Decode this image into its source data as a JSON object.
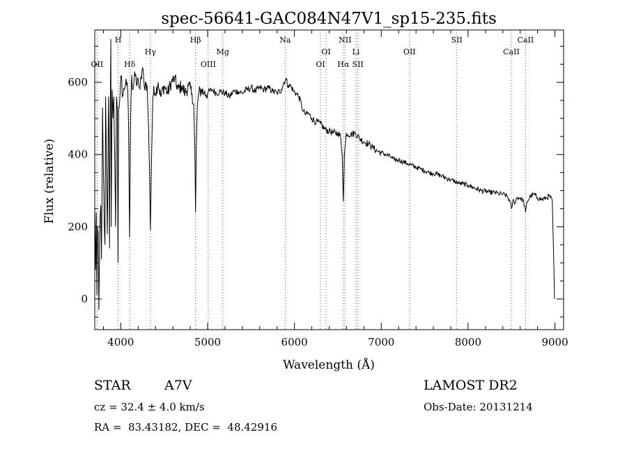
{
  "chart_data": {
    "type": "line",
    "title": "spec-56641-GAC084N47V1_sp15-235.fits",
    "xlabel": "Wavelength (Å)",
    "ylabel": "Flux (relative)",
    "xlim": [
      3700,
      9100
    ],
    "ylim": [
      -85,
      745
    ],
    "xticks": [
      4000,
      5000,
      6000,
      7000,
      8000,
      9000
    ],
    "yticks": [
      0,
      200,
      400,
      600
    ],
    "grid": false,
    "series": [
      {
        "points": [
          [
            3700,
            250
          ],
          [
            3710,
            80
          ],
          [
            3718,
            240
          ],
          [
            3725,
            10
          ],
          [
            3732,
            200
          ],
          [
            3740,
            180
          ],
          [
            3747,
            -30
          ],
          [
            3755,
            120
          ],
          [
            3762,
            230
          ],
          [
            3770,
            260
          ],
          [
            3778,
            110
          ],
          [
            3790,
            530
          ],
          [
            3800,
            340
          ],
          [
            3810,
            200
          ],
          [
            3818,
            150
          ],
          [
            3825,
            560
          ],
          [
            3835,
            360
          ],
          [
            3845,
            180
          ],
          [
            3855,
            470
          ],
          [
            3860,
            560
          ],
          [
            3870,
            140
          ],
          [
            3878,
            520
          ],
          [
            3885,
            720
          ],
          [
            3890,
            200
          ],
          [
            3900,
            580
          ],
          [
            3910,
            500
          ],
          [
            3920,
            560
          ],
          [
            3930,
            380
          ],
          [
            3940,
            200
          ],
          [
            3950,
            560
          ],
          [
            3960,
            520
          ],
          [
            3968,
            100
          ],
          [
            3975,
            530
          ],
          [
            3990,
            560
          ],
          [
            4005,
            620
          ],
          [
            4020,
            560
          ],
          [
            4040,
            580
          ],
          [
            4060,
            610
          ],
          [
            4080,
            570
          ],
          [
            4090,
            470
          ],
          [
            4101,
            170
          ],
          [
            4112,
            480
          ],
          [
            4125,
            620
          ],
          [
            4140,
            580
          ],
          [
            4160,
            630
          ],
          [
            4180,
            590
          ],
          [
            4200,
            610
          ],
          [
            4220,
            580
          ],
          [
            4250,
            640
          ],
          [
            4270,
            590
          ],
          [
            4290,
            600
          ],
          [
            4305,
            580
          ],
          [
            4320,
            470
          ],
          [
            4330,
            370
          ],
          [
            4341,
            190
          ],
          [
            4352,
            370
          ],
          [
            4365,
            520
          ],
          [
            4380,
            590
          ],
          [
            4400,
            570
          ],
          [
            4430,
            600
          ],
          [
            4460,
            560
          ],
          [
            4500,
            590
          ],
          [
            4540,
            570
          ],
          [
            4580,
            600
          ],
          [
            4620,
            610
          ],
          [
            4660,
            580
          ],
          [
            4700,
            590
          ],
          [
            4740,
            570
          ],
          [
            4780,
            590
          ],
          [
            4820,
            570
          ],
          [
            4840,
            540
          ],
          [
            4852,
            420
          ],
          [
            4861,
            240
          ],
          [
            4870,
            420
          ],
          [
            4882,
            540
          ],
          [
            4900,
            570
          ],
          [
            4930,
            580
          ],
          [
            4960,
            570
          ],
          [
            5000,
            570
          ],
          [
            5050,
            580
          ],
          [
            5100,
            570
          ],
          [
            5150,
            575
          ],
          [
            5200,
            570
          ],
          [
            5250,
            560
          ],
          [
            5300,
            575
          ],
          [
            5350,
            575
          ],
          [
            5400,
            570
          ],
          [
            5450,
            580
          ],
          [
            5500,
            585
          ],
          [
            5550,
            575
          ],
          [
            5600,
            585
          ],
          [
            5650,
            580
          ],
          [
            5700,
            585
          ],
          [
            5750,
            575
          ],
          [
            5800,
            570
          ],
          [
            5850,
            580
          ],
          [
            5880,
            600
          ],
          [
            5900,
            610
          ],
          [
            5930,
            590
          ],
          [
            5960,
            590
          ],
          [
            5990,
            575
          ],
          [
            6020,
            570
          ],
          [
            6050,
            560
          ],
          [
            6080,
            540
          ],
          [
            6100,
            520
          ],
          [
            6130,
            510
          ],
          [
            6160,
            515
          ],
          [
            6200,
            500
          ],
          [
            6250,
            490
          ],
          [
            6300,
            485
          ],
          [
            6350,
            470
          ],
          [
            6400,
            465
          ],
          [
            6450,
            460
          ],
          [
            6500,
            460
          ],
          [
            6530,
            450
          ],
          [
            6550,
            400
          ],
          [
            6563,
            270
          ],
          [
            6575,
            400
          ],
          [
            6600,
            460
          ],
          [
            6650,
            455
          ],
          [
            6700,
            460
          ],
          [
            6750,
            445
          ],
          [
            6800,
            435
          ],
          [
            6850,
            430
          ],
          [
            6900,
            420
          ],
          [
            6950,
            410
          ],
          [
            7000,
            405
          ],
          [
            7050,
            400
          ],
          [
            7100,
            395
          ],
          [
            7150,
            385
          ],
          [
            7200,
            385
          ],
          [
            7250,
            380
          ],
          [
            7300,
            375
          ],
          [
            7350,
            370
          ],
          [
            7400,
            365
          ],
          [
            7450,
            360
          ],
          [
            7500,
            355
          ],
          [
            7550,
            350
          ],
          [
            7600,
            348
          ],
          [
            7650,
            345
          ],
          [
            7700,
            340
          ],
          [
            7750,
            335
          ],
          [
            7800,
            330
          ],
          [
            7850,
            325
          ],
          [
            7900,
            320
          ],
          [
            7950,
            318
          ],
          [
            8000,
            315
          ],
          [
            8050,
            310
          ],
          [
            8100,
            305
          ],
          [
            8150,
            300
          ],
          [
            8200,
            298
          ],
          [
            8250,
            295
          ],
          [
            8300,
            295
          ],
          [
            8350,
            292
          ],
          [
            8400,
            290
          ],
          [
            8450,
            285
          ],
          [
            8480,
            270
          ],
          [
            8500,
            250
          ],
          [
            8520,
            275
          ],
          [
            8540,
            265
          ],
          [
            8560,
            280
          ],
          [
            8600,
            280
          ],
          [
            8640,
            270
          ],
          [
            8662,
            240
          ],
          [
            8680,
            270
          ],
          [
            8720,
            285
          ],
          [
            8760,
            290
          ],
          [
            8800,
            280
          ],
          [
            8850,
            275
          ],
          [
            8900,
            280
          ],
          [
            8940,
            285
          ],
          [
            8970,
            270
          ],
          [
            8985,
            120
          ],
          [
            8995,
            0
          ]
        ]
      }
    ],
    "lines": [
      {
        "label": "OII",
        "wavelength": 3727,
        "level": 3
      },
      {
        "label": "H",
        "wavelength": 3969,
        "level": 0
      },
      {
        "label": "Hδ",
        "wavelength": 4102,
        "level": 3
      },
      {
        "label": "Hγ",
        "wavelength": 4341,
        "level": 1
      },
      {
        "label": "Hβ",
        "wavelength": 4861,
        "level": 0
      },
      {
        "label": "OIII",
        "wavelength": 5007,
        "level": 3
      },
      {
        "label": "Mg",
        "wavelength": 5175,
        "level": 1
      },
      {
        "label": "Na",
        "wavelength": 5893,
        "level": 0
      },
      {
        "label": "OI",
        "wavelength": 6300,
        "level": 3
      },
      {
        "label": "OI",
        "wavelength": 6364,
        "level": 1
      },
      {
        "label": "NII",
        "wavelength": 6583,
        "level": 0
      },
      {
        "label": "Hα",
        "wavelength": 6563,
        "level": 3
      },
      {
        "label": "Li",
        "wavelength": 6708,
        "level": 1
      },
      {
        "label": "SII",
        "wavelength": 6731,
        "level": 3
      },
      {
        "label": "OII",
        "wavelength": 7325,
        "level": 1
      },
      {
        "label": "SII",
        "wavelength": 7870,
        "level": 0
      },
      {
        "label": "CaII",
        "wavelength": 8498,
        "level": 1
      },
      {
        "label": "CaII",
        "wavelength": 8662,
        "level": 0
      }
    ],
    "colors": {
      "line_marker": "#d62020",
      "spectrum": "#000000"
    }
  },
  "info": {
    "class": "STAR",
    "subclass": "A7V",
    "survey": "LAMOST DR2",
    "cz": "cz = 32.4 ± 4.0 km/s",
    "obs_date": "Obs-Date: 20131214",
    "coords": "RA =  83.43182, DEC =  48.42916"
  }
}
